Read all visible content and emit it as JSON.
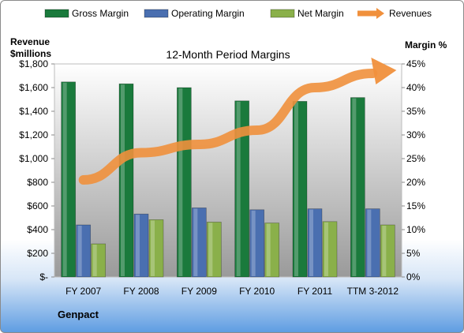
{
  "chart_data": {
    "type": "bar",
    "title": "12-Month Period Margins",
    "company": "Genpact",
    "categories": [
      "FY 2007",
      "FY 2008",
      "FY 2009",
      "FY 2010",
      "FY 2011",
      "TTM 3-2012"
    ],
    "series": [
      {
        "name": "Gross Margin",
        "axis": "right",
        "color": "#1a7a3c",
        "values": [
          41.2,
          40.8,
          40.0,
          37.2,
          37.1,
          37.9
        ]
      },
      {
        "name": "Operating Margin",
        "axis": "right",
        "color": "#4a6fb0",
        "values": [
          11.0,
          13.3,
          14.6,
          14.2,
          14.4,
          14.4
        ]
      },
      {
        "name": "Net Margin",
        "axis": "right",
        "color": "#8ab04a",
        "values": [
          7.0,
          12.1,
          11.6,
          11.4,
          11.7,
          11.0
        ]
      },
      {
        "name": "Revenues",
        "axis": "left",
        "type": "line",
        "color": "#f0903c",
        "values": [
          820,
          1050,
          1120,
          1240,
          1600,
          1720
        ]
      }
    ],
    "y_left": {
      "label_line1": "Revenue",
      "label_line2": "$millions",
      "min": 0,
      "max": 1800,
      "step": 200,
      "ticks": [
        "$-",
        "$200",
        "$400",
        "$600",
        "$800",
        "$1,000",
        "$1,200",
        "$1,400",
        "$1,600",
        "$1,800"
      ]
    },
    "y_right": {
      "label": "Margin %",
      "min": 0,
      "max": 45,
      "step": 5,
      "ticks": [
        "0%",
        "5%",
        "10%",
        "15%",
        "20%",
        "25%",
        "30%",
        "35%",
        "40%",
        "45%"
      ]
    },
    "legend_position": "top",
    "grid": false
  }
}
